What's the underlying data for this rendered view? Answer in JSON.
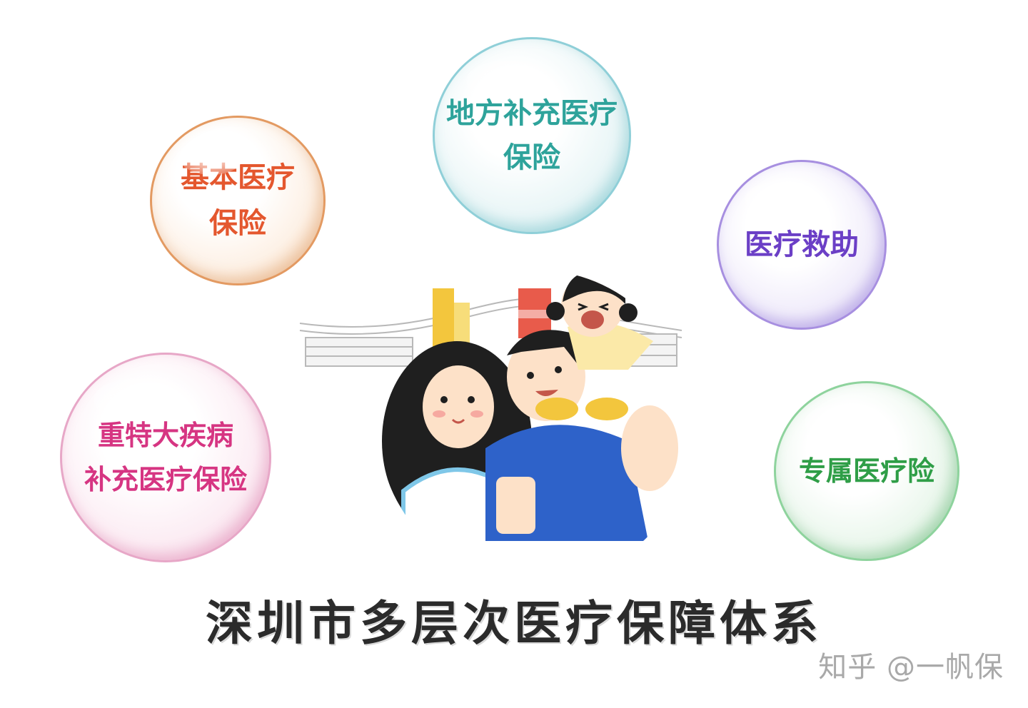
{
  "bubbles": {
    "basic": {
      "line1": "基本医疗",
      "line2": "保险",
      "color": "#e4572e"
    },
    "local": {
      "line1": "地方补充医疗",
      "line2": "保险",
      "color": "#2ea39b"
    },
    "aid": {
      "line1": "医疗救助",
      "color": "#6b3fc6"
    },
    "critical": {
      "line1": "重特大疾病",
      "line2": "补充医疗保险",
      "color": "#d63582"
    },
    "exclusive": {
      "line1": "专属医疗险",
      "color": "#2f9e47"
    }
  },
  "title": "深圳市多层次医疗保障体系",
  "watermark": "知乎 @一帆保",
  "colors": {
    "title": "#2b2b2b",
    "shirt_blue": "#2e62c9",
    "hair": "#1f1f1f"
  }
}
